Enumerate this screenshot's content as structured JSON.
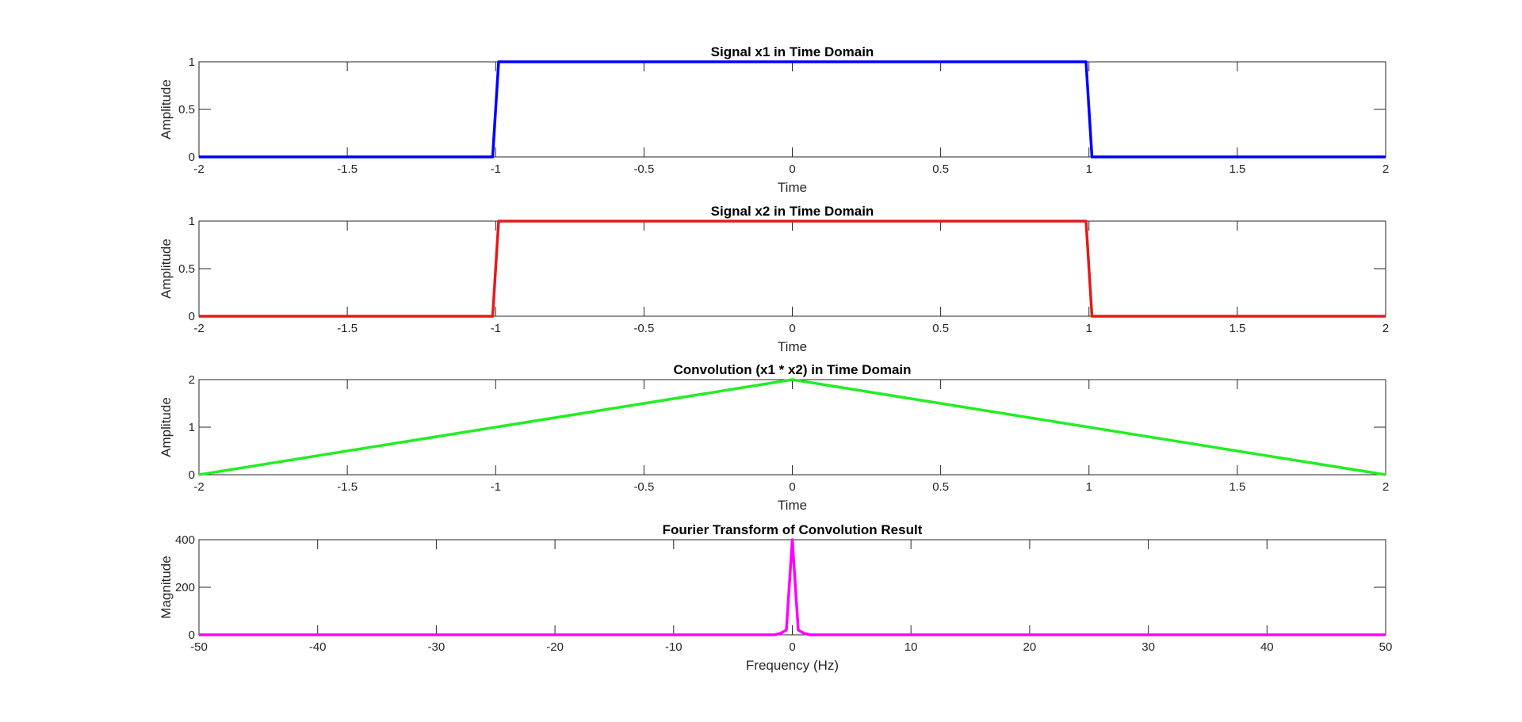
{
  "chart_data": [
    {
      "type": "line",
      "title": "Signal x1 in Time Domain",
      "xlabel": "Time",
      "ylabel": "Amplitude",
      "xlim": [
        -2,
        2
      ],
      "ylim": [
        0,
        1
      ],
      "xticks": [
        "-2",
        "-1.5",
        "-1",
        "-0.5",
        "0",
        "0.5",
        "1",
        "1.5",
        "2"
      ],
      "yticks": [
        "0",
        "0.5",
        "1"
      ],
      "color": "#0000FF",
      "series": [
        {
          "x": [
            -2,
            -1.01,
            -0.99,
            0.99,
            1.01,
            2
          ],
          "y": [
            0,
            0,
            1,
            1,
            0,
            0
          ]
        }
      ]
    },
    {
      "type": "line",
      "title": "Signal x2 in Time Domain",
      "xlabel": "Time",
      "ylabel": "Amplitude",
      "xlim": [
        -2,
        2
      ],
      "ylim": [
        0,
        1
      ],
      "xticks": [
        "-2",
        "-1.5",
        "-1",
        "-0.5",
        "0",
        "0.5",
        "1",
        "1.5",
        "2"
      ],
      "yticks": [
        "0",
        "0.5",
        "1"
      ],
      "color": "#E31A1C",
      "series": [
        {
          "x": [
            -2,
            -1.01,
            -0.99,
            0.99,
            1.01,
            2
          ],
          "y": [
            0,
            0,
            1,
            1,
            0,
            0
          ]
        }
      ]
    },
    {
      "type": "line",
      "title": "Convolution (x1 * x2) in Time Domain",
      "xlabel": "Time",
      "ylabel": "Amplitude",
      "xlim": [
        -2,
        2
      ],
      "ylim": [
        0,
        2
      ],
      "xticks": [
        "-2",
        "-1.5",
        "-1",
        "-0.5",
        "0",
        "0.5",
        "1",
        "1.5",
        "2"
      ],
      "yticks": [
        "0",
        "1",
        "2"
      ],
      "color": "#22EE22",
      "series": [
        {
          "x": [
            -2,
            0,
            2
          ],
          "y": [
            0,
            2,
            0
          ]
        }
      ]
    },
    {
      "type": "line",
      "title": "Fourier Transform of Convolution Result",
      "xlabel": "Frequency (Hz)",
      "ylabel": "Magnitude",
      "xlim": [
        -50,
        50
      ],
      "ylim": [
        0,
        400
      ],
      "xticks": [
        "-50",
        "-40",
        "-30",
        "-20",
        "-10",
        "0",
        "10",
        "20",
        "30",
        "40",
        "50"
      ],
      "yticks": [
        "0",
        "200",
        "400"
      ],
      "color": "#FF00FF",
      "series": [
        {
          "x": [
            -50,
            -1.5,
            -1,
            -0.5,
            0,
            0.5,
            1,
            1.5,
            50
          ],
          "y": [
            0,
            0,
            6,
            20,
            400,
            20,
            6,
            0,
            0
          ]
        }
      ]
    }
  ]
}
